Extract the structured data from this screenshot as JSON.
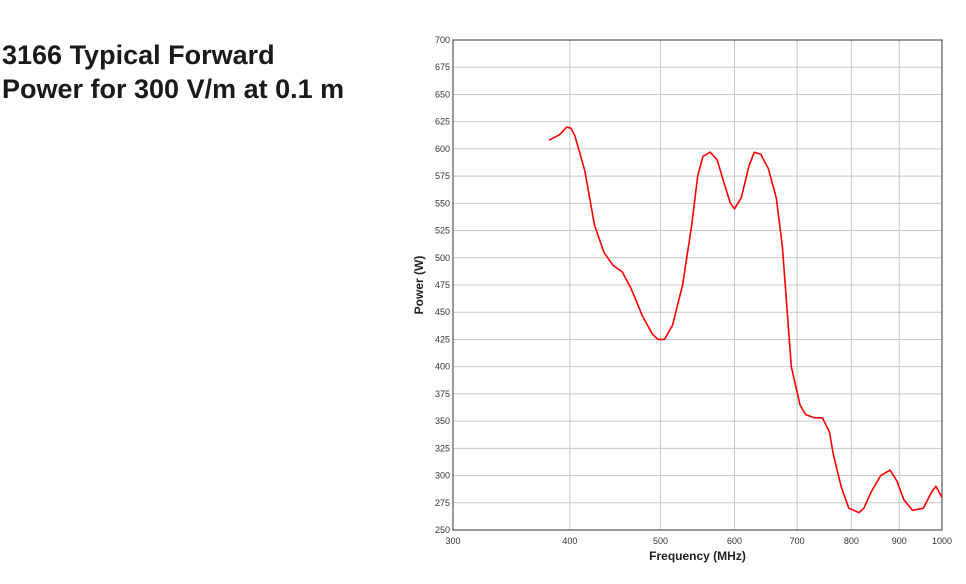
{
  "title_lines": [
    "3166 Typical Forward",
    "Power for 300 V/m at 0.1 m"
  ],
  "chart_data": {
    "type": "line",
    "xlabel": "Frequency (MHz)",
    "ylabel": "Power (W)",
    "x_scale": "log",
    "xlim": [
      300,
      1000
    ],
    "ylim": [
      250,
      700
    ],
    "x_ticks": [
      300,
      400,
      500,
      600,
      700,
      800,
      900,
      1000
    ],
    "x_tick_labels": [
      "300",
      "400",
      "500",
      "600",
      "700",
      "800",
      "900",
      "1000"
    ],
    "y_ticks": [
      250,
      275,
      300,
      325,
      350,
      375,
      400,
      425,
      450,
      475,
      500,
      525,
      550,
      575,
      600,
      625,
      650,
      675,
      700
    ],
    "grid": true,
    "line_color": "#ff0000",
    "series": [
      {
        "x": [
          380,
          390,
          397,
          401,
          405,
          415,
          425,
          435,
          445,
          455,
          465,
          478,
          490,
          497,
          505,
          515,
          528,
          540,
          548,
          555,
          565,
          575,
          585,
          594,
          600,
          610,
          622,
          630,
          640,
          652,
          665,
          675,
          690,
          705,
          715,
          730,
          745,
          758,
          765,
          780,
          795,
          815,
          825,
          840,
          860,
          880,
          895,
          910,
          930,
          955,
          975,
          985,
          1000
        ],
        "y": [
          608,
          613,
          620,
          619,
          612,
          580,
          530,
          505,
          493,
          487,
          472,
          447,
          430,
          425,
          425,
          438,
          475,
          530,
          575,
          593,
          597,
          590,
          568,
          550,
          545,
          555,
          585,
          597,
          595,
          582,
          555,
          510,
          400,
          365,
          356,
          353,
          353,
          340,
          320,
          290,
          270,
          266,
          270,
          285,
          300,
          305,
          295,
          278,
          268,
          270,
          285,
          290,
          280
        ]
      }
    ]
  }
}
